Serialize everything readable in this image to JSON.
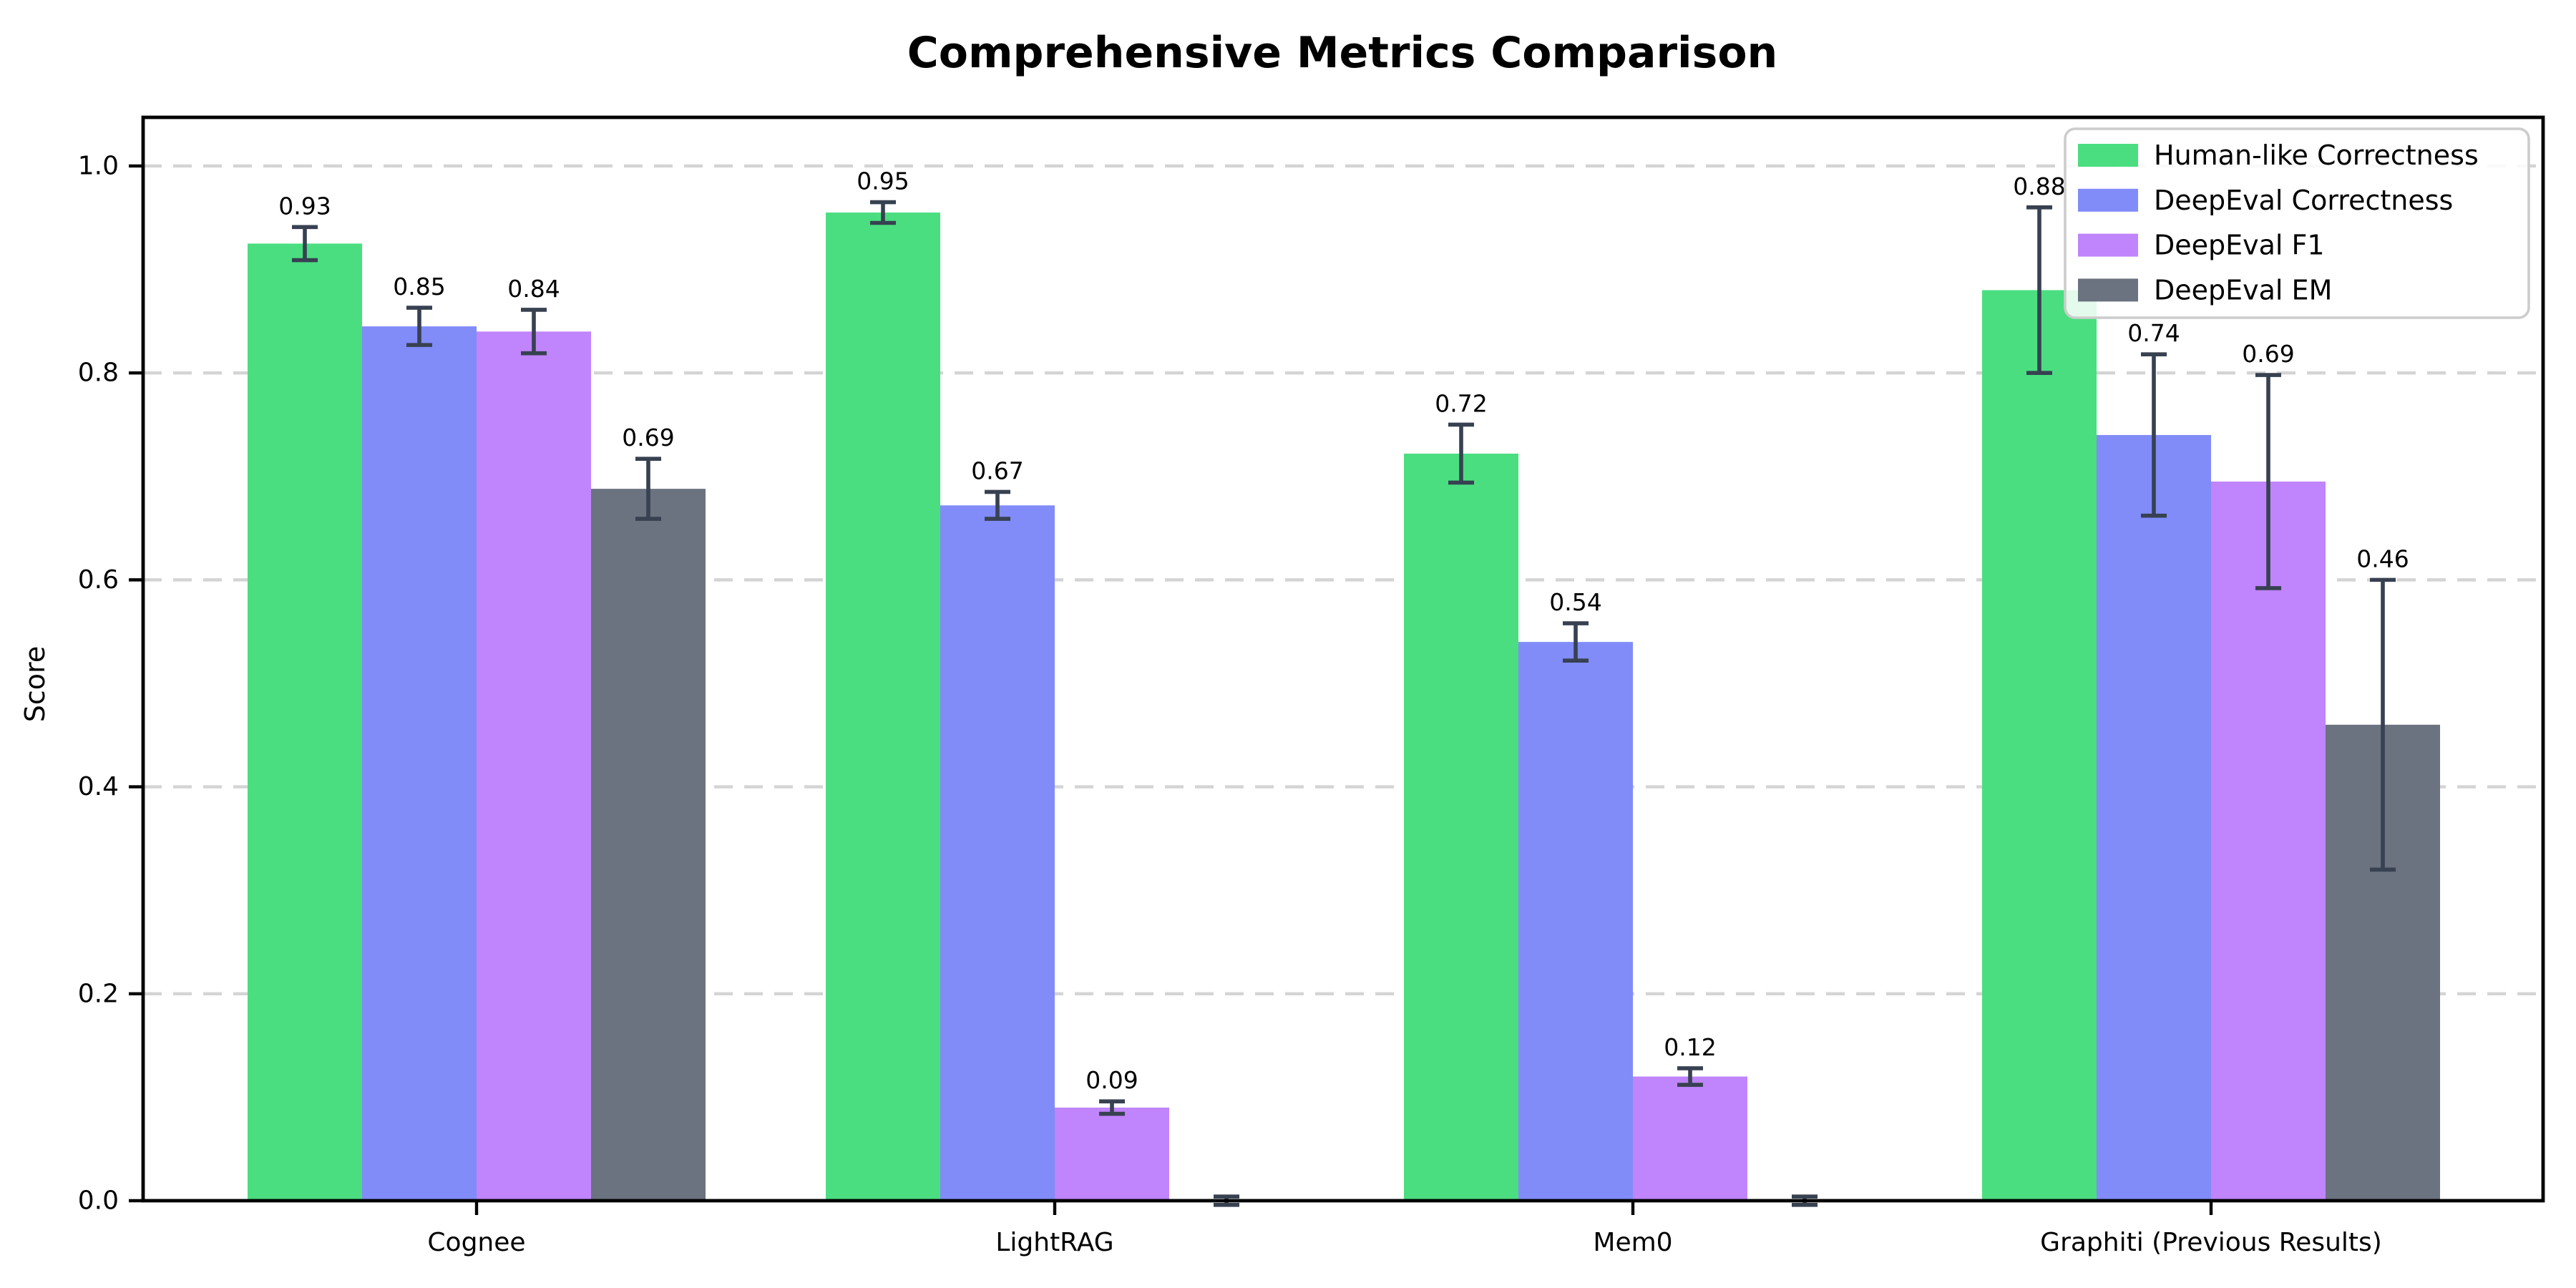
{
  "page": {
    "background_color": "#ffffff"
  },
  "chart_data": {
    "type": "bar",
    "title": "Comprehensive Metrics Comparison",
    "ylabel": "Score",
    "xlabel": "",
    "categories": [
      "Cognee",
      "LightRAG",
      "Mem0",
      "Graphiti (Previous Results)"
    ],
    "series": [
      {
        "name": "Human-like Correctness",
        "color": "#4ade80",
        "values": [
          0.925,
          0.955,
          0.722,
          0.88
        ],
        "errors": [
          0.016,
          0.01,
          0.028,
          0.08
        ],
        "value_labels": [
          "0.93",
          "0.95",
          "0.72",
          "0.88"
        ]
      },
      {
        "name": "DeepEval Correctness",
        "color": "#818cf8",
        "values": [
          0.845,
          0.672,
          0.54,
          0.74
        ],
        "errors": [
          0.018,
          0.013,
          0.018,
          0.078
        ],
        "value_labels": [
          "0.85",
          "0.67",
          "0.54",
          "0.74"
        ]
      },
      {
        "name": "DeepEval F1",
        "color": "#c084fc",
        "values": [
          0.84,
          0.09,
          0.12,
          0.695
        ],
        "errors": [
          0.021,
          0.006,
          0.008,
          0.103
        ],
        "value_labels": [
          "0.84",
          "0.09",
          "0.12",
          "0.69"
        ]
      },
      {
        "name": "DeepEval EM",
        "color": "#6b7280",
        "values": [
          0.688,
          0.0,
          0.0,
          0.46
        ],
        "errors": [
          0.029,
          0.004,
          0.004,
          0.14
        ],
        "value_labels": [
          "0.69",
          "",
          "",
          "0.46"
        ]
      }
    ],
    "yticks": [
      0.0,
      0.2,
      0.4,
      0.6,
      0.8,
      1.0
    ],
    "ytick_labels": [
      "0.0",
      "0.2",
      "0.4",
      "0.6",
      "0.8",
      "1.0"
    ],
    "ylim": [
      0,
      1.047
    ],
    "grid": "horizontal-dashed",
    "legend_position": "upper-right",
    "colors": {
      "error_bar": "#374151",
      "axis": "#000000",
      "gridline": "#d4d4d4",
      "legend_border": "#cccccc",
      "legend_background": "#ffffff"
    }
  }
}
